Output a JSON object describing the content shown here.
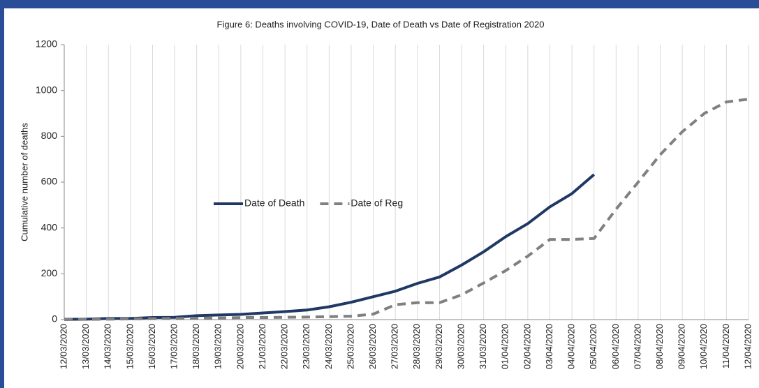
{
  "chart_data": {
    "type": "line",
    "title": "Figure 6: Deaths involving COVID-19, Date of Death vs Date of Registration 2020",
    "ylabel": "Cumulative number of deaths",
    "categories": [
      "12/03/2020",
      "13/03/2020",
      "14/03/2020",
      "15/03/2020",
      "16/03/2020",
      "17/03/2020",
      "18/03/2020",
      "19/03/2020",
      "20/03/2020",
      "21/03/2020",
      "22/03/2020",
      "23/03/2020",
      "24/03/2020",
      "25/03/2020",
      "26/03/2020",
      "27/03/2020",
      "28/03/2020",
      "29/03/2020",
      "30/03/2020",
      "31/03/2020",
      "01/04/2020",
      "02/04/2020",
      "03/04/2020",
      "04/04/2020",
      "05/04/2020",
      "06/04/2020",
      "07/04/2020",
      "08/04/2020",
      "09/04/2020",
      "10/04/2020",
      "11/04/2020",
      "12/04/2020"
    ],
    "series": [
      {
        "name": "Date of Death",
        "color": "#1f3864",
        "dashed": false,
        "values": [
          1,
          2,
          5,
          5,
          9,
          10,
          17,
          20,
          23,
          29,
          35,
          42,
          56,
          76,
          100,
          124,
          158,
          186,
          238,
          296,
          362,
          419,
          492,
          550,
          633,
          null,
          null,
          null,
          null,
          null,
          null,
          null
        ]
      },
      {
        "name": "Date of Reg",
        "color": "#808080",
        "dashed": true,
        "values": [
          0,
          1,
          2,
          3,
          4,
          5,
          6,
          7,
          9,
          9,
          10,
          11,
          13,
          15,
          24,
          65,
          74,
          74,
          108,
          160,
          214,
          277,
          350,
          350,
          354,
          482,
          600,
          720,
          820,
          900,
          950,
          962
        ]
      }
    ],
    "ylim": [
      0,
      1200
    ],
    "yticks": [
      0,
      200,
      400,
      600,
      800,
      1000,
      1200
    ],
    "grid": "x"
  }
}
